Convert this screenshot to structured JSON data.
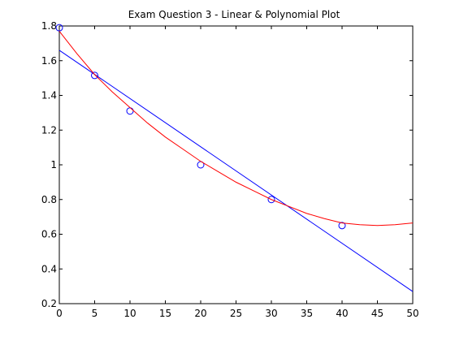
{
  "chart_data": {
    "type": "scatter",
    "title": "Exam Question 3 - Linear & Polynomial Plot",
    "xlabel": "",
    "ylabel": "",
    "xlim": [
      0,
      50
    ],
    "ylim": [
      0.2,
      1.8
    ],
    "xticks": [
      0,
      5,
      10,
      15,
      20,
      25,
      30,
      35,
      40,
      45,
      50
    ],
    "yticks": [
      0.2,
      0.4,
      0.6,
      0.8,
      1,
      1.2,
      1.4,
      1.6,
      1.8
    ],
    "grid": false,
    "series": [
      {
        "kind": "markers",
        "marker": "circle",
        "color": "#0000ff",
        "x": [
          0,
          5,
          10,
          20,
          30,
          40
        ],
        "y": [
          1.79,
          1.515,
          1.31,
          1.0,
          0.8,
          0.65
        ]
      },
      {
        "kind": "linear-fit",
        "color": "#0000ff",
        "x": [
          0,
          50
        ],
        "y": [
          1.66,
          0.27
        ]
      },
      {
        "kind": "polynomial-fit",
        "color": "#ff0000",
        "x": [
          0,
          2.5,
          5,
          7.5,
          10,
          12.5,
          15,
          17.5,
          20,
          22.5,
          25,
          27.5,
          30,
          32.5,
          35,
          37.5,
          40,
          42.5,
          45,
          47.5,
          50
        ],
        "y": [
          1.77,
          1.64,
          1.52,
          1.42,
          1.33,
          1.24,
          1.16,
          1.09,
          1.02,
          0.96,
          0.9,
          0.85,
          0.8,
          0.76,
          0.72,
          0.69,
          0.665,
          0.655,
          0.65,
          0.655,
          0.665
        ]
      }
    ]
  }
}
